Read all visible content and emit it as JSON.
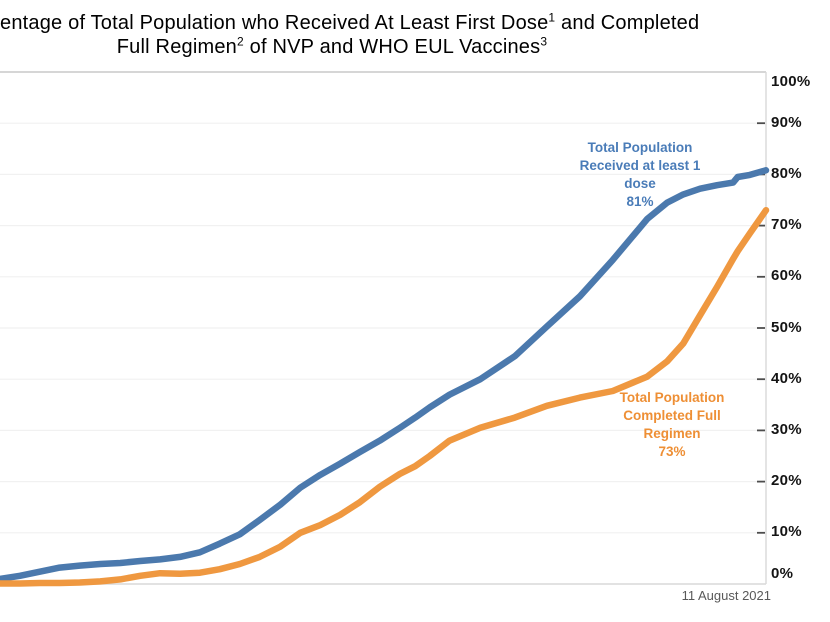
{
  "title": {
    "line1_text": "entage of Total Population who Received At Least First Dose",
    "line1_sup": "1",
    "line1_tail": " and Completed",
    "line2_text": "Full Regimen",
    "line2_sup": "2",
    "line2_mid": "  of NVP and WHO EUL Vaccines",
    "line2_sup2": "3"
  },
  "chart_data": {
    "type": "line",
    "title": "entage of Total Population who Received At Least First Dose1 and Completed Full Regimen2 of NVP and WHO EUL Vaccines3",
    "xlabel": "",
    "ylabel": "",
    "ylim": [
      0,
      100
    ],
    "grid": true,
    "legend": "none (inline text annotations beside each line)",
    "y_tick_labels": [
      "0%",
      "10%",
      "20%",
      "30%",
      "40%",
      "50%",
      "60%",
      "70%",
      "80%",
      "90%",
      "100%"
    ],
    "date_label": "11 August 2021",
    "x_percent_of_width": [
      0,
      2.6,
      5.2,
      7.8,
      10.4,
      13.1,
      15.7,
      18.3,
      20.9,
      23.5,
      26.1,
      28.7,
      31.3,
      33.9,
      36.6,
      39.2,
      41.8,
      44.4,
      47.0,
      49.6,
      52.2,
      54.2,
      56.1,
      58.7,
      62.7,
      67.2,
      71.4,
      75.7,
      80.0,
      84.5,
      87.1,
      89.2,
      91.4,
      93.6,
      95.7,
      96.3,
      97.9,
      100
    ],
    "series": [
      {
        "name": "Total Population Received at least 1 dose",
        "final_label": "81%",
        "color": "#4B79AD",
        "values": [
          1.0,
          1.6,
          2.4,
          3.2,
          3.6,
          3.9,
          4.1,
          4.5,
          4.8,
          5.3,
          6.2,
          7.9,
          9.7,
          12.5,
          15.5,
          18.8,
          21.3,
          23.5,
          25.8,
          28.0,
          30.5,
          32.5,
          34.5,
          37.0,
          40.0,
          44.5,
          50.3,
          56.2,
          63.3,
          71.3,
          74.5,
          76.1,
          77.2,
          77.9,
          78.4,
          79.5,
          79.9,
          80.8
        ]
      },
      {
        "name": "Total Population Completed Full Regimen",
        "final_label": "73%",
        "color": "#EF9840",
        "values": [
          0.1,
          0.1,
          0.2,
          0.2,
          0.3,
          0.5,
          0.9,
          1.6,
          2.1,
          2.0,
          2.2,
          2.9,
          3.9,
          5.3,
          7.3,
          10.0,
          11.5,
          13.5,
          16.0,
          19.0,
          21.5,
          23.0,
          25.0,
          28.0,
          30.5,
          32.5,
          34.8,
          36.4,
          37.7,
          40.5,
          43.5,
          47.0,
          52.5,
          58.0,
          63.5,
          65.0,
          68.5,
          73.0
        ]
      }
    ]
  },
  "annotations": {
    "first_dose": {
      "lines": [
        "Total Population",
        "Received at least 1",
        "dose",
        "81%"
      ],
      "color": "#4A7CB8"
    },
    "full_regimen": {
      "lines": [
        "Total Population",
        "Completed Full",
        "Regimen",
        "73%"
      ],
      "color": "#EE8F35"
    }
  },
  "footer": {
    "date": "11 August 2021"
  },
  "colors": {
    "blue_line": "#4B79AD",
    "orange_line": "#EF9840",
    "gridline": "#F1F1F1",
    "top_border": "#C9C9C9",
    "axis_line": "#D9D9D9",
    "tick": "#4D4D4D",
    "tick_label": "#141414",
    "date_text": "#595959"
  }
}
